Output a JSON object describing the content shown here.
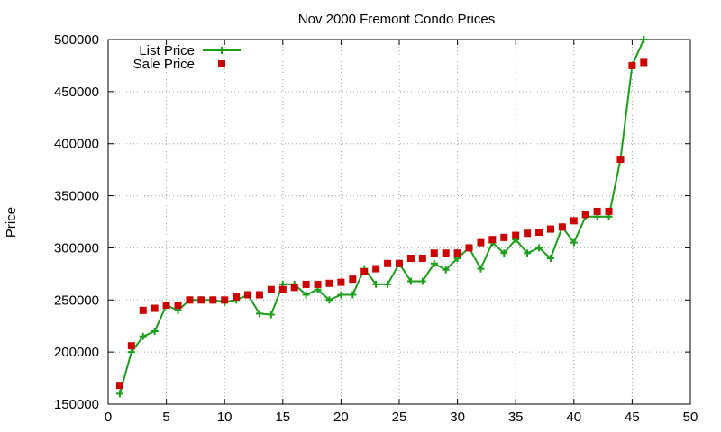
{
  "chart_data": {
    "type": "line",
    "title": "Nov 2000 Fremont Condo Prices",
    "xlabel": "",
    "ylabel": "Price",
    "xlim": [
      0,
      50
    ],
    "ylim": [
      150000,
      500000
    ],
    "xticks": [
      0,
      5,
      10,
      15,
      20,
      25,
      30,
      35,
      40,
      45,
      50
    ],
    "yticks": [
      150000,
      200000,
      250000,
      300000,
      350000,
      400000,
      450000,
      500000
    ],
    "grid": true,
    "legend_position": "top-left",
    "x": [
      1,
      2,
      3,
      4,
      5,
      6,
      7,
      8,
      9,
      10,
      11,
      12,
      13,
      14,
      15,
      16,
      17,
      18,
      19,
      20,
      21,
      22,
      23,
      24,
      25,
      26,
      27,
      28,
      29,
      30,
      31,
      32,
      33,
      34,
      35,
      36,
      37,
      38,
      39,
      40,
      41,
      42,
      43,
      44,
      45,
      46
    ],
    "series": [
      {
        "name": "List Price",
        "style": "linespoints",
        "color": "#1a9e1a",
        "marker": "plus",
        "values": [
          160000,
          200000,
          215000,
          220000,
          245000,
          240000,
          250000,
          250000,
          250000,
          248000,
          250000,
          255000,
          237000,
          236000,
          265000,
          265000,
          255000,
          260000,
          250000,
          255000,
          255000,
          280000,
          265000,
          265000,
          285000,
          268000,
          268000,
          285000,
          279000,
          290000,
          300000,
          280000,
          305000,
          295000,
          308000,
          295000,
          300000,
          290000,
          320000,
          305000,
          330000,
          330000,
          330000,
          385000,
          475000,
          500000
        ]
      },
      {
        "name": "Sale Price",
        "style": "points",
        "color": "#cc0000",
        "marker": "square",
        "values": [
          168000,
          206000,
          240000,
          242000,
          245000,
          245000,
          250000,
          250000,
          250000,
          250000,
          253000,
          255000,
          255000,
          260000,
          260000,
          262000,
          265000,
          265000,
          266000,
          267000,
          270000,
          277000,
          280000,
          285000,
          285000,
          290000,
          290000,
          295000,
          295000,
          295000,
          300000,
          305000,
          308000,
          310000,
          312000,
          314000,
          315000,
          318000,
          320000,
          326000,
          332000,
          335000,
          335000,
          385000,
          475000,
          478000
        ]
      }
    ]
  }
}
